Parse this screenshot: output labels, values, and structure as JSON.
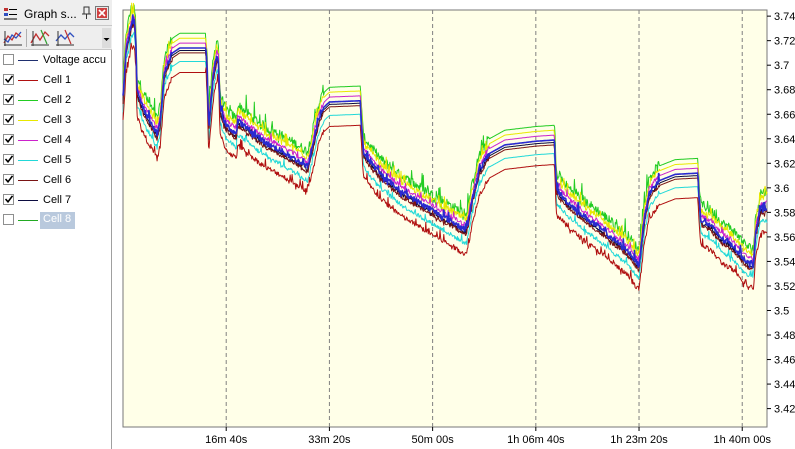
{
  "panel": {
    "title": "Graph s...",
    "legend": [
      {
        "label": "Voltage accu",
        "checked": false,
        "color": "#1f2f6f",
        "selected": false
      },
      {
        "label": "Cell 1",
        "checked": true,
        "color": "#b01010",
        "selected": false
      },
      {
        "label": "Cell 2",
        "checked": true,
        "color": "#22cc22",
        "selected": false
      },
      {
        "label": "Cell 3",
        "checked": true,
        "color": "#e8e800",
        "selected": false
      },
      {
        "label": "Cell 4",
        "checked": true,
        "color": "#cc22cc",
        "selected": false
      },
      {
        "label": "Cell 5",
        "checked": true,
        "color": "#22d8d8",
        "selected": false
      },
      {
        "label": "Cell 6",
        "checked": true,
        "color": "#7a1414",
        "selected": false
      },
      {
        "label": "Cell 7",
        "checked": true,
        "color": "#0c0c40",
        "selected": false
      },
      {
        "label": "Cell 8",
        "checked": false,
        "color": "#22aa22",
        "selected": true
      }
    ]
  },
  "chart_data": {
    "type": "line",
    "background": "#ffffe8",
    "x_unit": "seconds",
    "xlim": [
      0,
      6240
    ],
    "ylim": [
      3.405,
      3.745
    ],
    "x_ticks": [
      {
        "x": 1000,
        "label": "16m 40s"
      },
      {
        "x": 2000,
        "label": "33m 20s"
      },
      {
        "x": 3000,
        "label": "50m 00s"
      },
      {
        "x": 4000,
        "label": "1h 06m 40s"
      },
      {
        "x": 5000,
        "label": "1h 23m 20s"
      },
      {
        "x": 6000,
        "label": "1h 40m 00s"
      }
    ],
    "y_ticks": [
      "3.74",
      "3.72",
      "3.7",
      "3.68",
      "3.66",
      "3.64",
      "3.62",
      "3.6",
      "3.58",
      "3.56",
      "3.54",
      "3.52",
      "3.5",
      "3.48",
      "3.46",
      "3.44",
      "3.42"
    ],
    "grid": {
      "vertical": "dashed",
      "horizontal": "none"
    },
    "series": [
      {
        "name": "Cell 2",
        "color": "#22cc22",
        "offset": 0.01,
        "noise": 0.022
      },
      {
        "name": "Cell 3",
        "color": "#e8e800",
        "offset": 0.006,
        "noise": 0.016
      },
      {
        "name": "Cell 4",
        "color": "#cc22cc",
        "offset": 0.002,
        "noise": 0.01
      },
      {
        "name": "Cell 7",
        "color": "#0c0c40",
        "offset": -0.004,
        "noise": 0.008
      },
      {
        "name": "Cell 5",
        "color": "#22d8d8",
        "offset": -0.013,
        "noise": 0.01
      },
      {
        "name": "Cell 6",
        "color": "#7a1414",
        "offset": -0.006,
        "noise": 0.008
      },
      {
        "name": "Cell 1",
        "color": "#b01010",
        "offset": -0.022,
        "noise": 0.012
      }
    ],
    "band": {
      "color": "#2a2ad0",
      "offset": -0.002,
      "noise": 0.012
    },
    "base_profile": [
      [
        0,
        3.675
      ],
      [
        30,
        3.715
      ],
      [
        80,
        3.735
      ],
      [
        110,
        3.738
      ],
      [
        125,
        3.72
      ],
      [
        135,
        3.68
      ],
      [
        200,
        3.665
      ],
      [
        300,
        3.65
      ],
      [
        330,
        3.645
      ],
      [
        360,
        3.655
      ],
      [
        400,
        3.695
      ],
      [
        480,
        3.712
      ],
      [
        550,
        3.716
      ],
      [
        800,
        3.716
      ],
      [
        815,
        3.7
      ],
      [
        830,
        3.65
      ],
      [
        870,
        3.69
      ],
      [
        910,
        3.71
      ],
      [
        925,
        3.705
      ],
      [
        940,
        3.665
      ],
      [
        1000,
        3.652
      ],
      [
        1100,
        3.645
      ],
      [
        1110,
        3.656
      ],
      [
        1200,
        3.65
      ],
      [
        1300,
        3.643
      ],
      [
        1400,
        3.637
      ],
      [
        1500,
        3.633
      ],
      [
        1600,
        3.628
      ],
      [
        1700,
        3.623
      ],
      [
        1790,
        3.618
      ],
      [
        1850,
        3.64
      ],
      [
        1900,
        3.658
      ],
      [
        1950,
        3.668
      ],
      [
        2000,
        3.672
      ],
      [
        2300,
        3.673
      ],
      [
        2310,
        3.655
      ],
      [
        2330,
        3.63
      ],
      [
        2400,
        3.622
      ],
      [
        2500,
        3.612
      ],
      [
        2600,
        3.605
      ],
      [
        2700,
        3.598
      ],
      [
        2800,
        3.593
      ],
      [
        2900,
        3.588
      ],
      [
        3000,
        3.583
      ],
      [
        3100,
        3.578
      ],
      [
        3200,
        3.573
      ],
      [
        3300,
        3.568
      ],
      [
        3330,
        3.567
      ],
      [
        3380,
        3.59
      ],
      [
        3450,
        3.615
      ],
      [
        3550,
        3.63
      ],
      [
        3700,
        3.637
      ],
      [
        4000,
        3.64
      ],
      [
        4180,
        3.641
      ],
      [
        4190,
        3.62
      ],
      [
        4200,
        3.6
      ],
      [
        4300,
        3.59
      ],
      [
        4400,
        3.583
      ],
      [
        4500,
        3.576
      ],
      [
        4600,
        3.57
      ],
      [
        4700,
        3.563
      ],
      [
        4800,
        3.556
      ],
      [
        4900,
        3.549
      ],
      [
        4980,
        3.54
      ],
      [
        5000,
        3.538
      ],
      [
        5050,
        3.575
      ],
      [
        5100,
        3.597
      ],
      [
        5200,
        3.608
      ],
      [
        5350,
        3.613
      ],
      [
        5570,
        3.614
      ],
      [
        5580,
        3.595
      ],
      [
        5600,
        3.575
      ],
      [
        5700,
        3.57
      ],
      [
        5800,
        3.56
      ],
      [
        5900,
        3.555
      ],
      [
        6000,
        3.545
      ],
      [
        6060,
        3.54
      ],
      [
        6110,
        3.54
      ],
      [
        6130,
        3.565
      ],
      [
        6180,
        3.585
      ]
    ]
  }
}
